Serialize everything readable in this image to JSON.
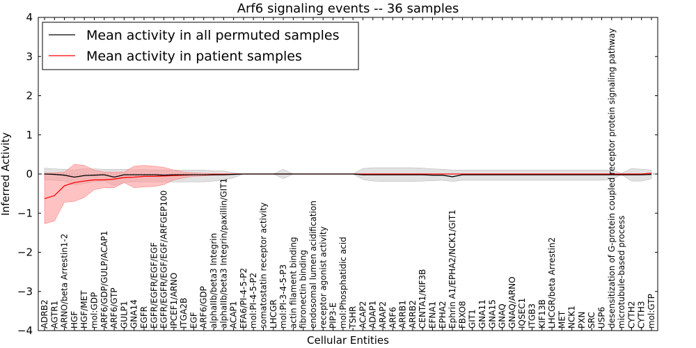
{
  "chart_data": {
    "type": "line",
    "title": "Arf6 signaling events -- 36 samples",
    "xlabel": "Cellular Entities",
    "ylabel": "Inferred Activity",
    "ylim": [
      -4,
      4
    ],
    "yticks": [
      4,
      3,
      2,
      1,
      0,
      -1,
      -2,
      -3,
      -4
    ],
    "ytick_labels": [
      "4",
      "3",
      "2",
      "1",
      "0",
      "−1",
      "−2",
      "−3",
      "−4"
    ],
    "legend_position": "upper-left",
    "categories": [
      "ADRB2",
      "AGTR1",
      "ARNO/beta Arrestin1-2",
      "HGF",
      "HGF/MET",
      "mol:GDP",
      "ARF6/GDP/GULP/ACAP1",
      "ARF6/GTP",
      "GULP1",
      "GNA14",
      "EGFR",
      "EGFR/EGFR/EGF/EGF",
      "EGFR/EGFR/EGF/EGF/ARFGEP100",
      "IPCEF1/ARNO",
      "ITGA2B",
      "EGF",
      "ARF6/GDP",
      "alphaIIb/beta3 Integrin",
      "alphaIIb/beta3 Integrin/paxillin/GIT1",
      "ACAP1",
      "EFA6/PI-4-5-P2",
      "mol:PI-4-5-P2",
      "somatostatin receptor activity",
      "LHCGR",
      "mol:PI-3-4-5-P3",
      "actin filament binding",
      "fibronectin binding",
      "endosomal lumen acidification",
      "receptor agonist activity",
      "PIP3-E",
      "mol:Phosphatidic acid",
      "TSHR",
      "ACAP2",
      "ADAP1",
      "ARAP2",
      "ARF6",
      "ARRB1",
      "ARRB2",
      "CENTA1/KIF3B",
      "EFNA1",
      "EPHA2",
      "Ephrin A1/EPHA2/NCK1/GIT1",
      "FBXO8",
      "GIT1",
      "GNA11",
      "GNA15",
      "GNAQ",
      "GNAQ/ARNO",
      "IQSEC1",
      "ITGB3",
      "KIF13B",
      "LHCGR/beta Arrestin2",
      "MET",
      "NCK1",
      "PXN",
      "SRC",
      "USP6",
      "desensitization of G-protein coupled receptor protein signaling pathway",
      "microtubule-based process",
      "CYTH2",
      "CYTH3",
      "mol:GTP"
    ],
    "series": [
      {
        "name": "Mean activity in all permuted samples",
        "color": "#000000",
        "values": [
          0,
          -0.01,
          -0.03,
          -0.08,
          -0.04,
          -0.03,
          -0.02,
          -0.08,
          -0.02,
          -0.02,
          -0.02,
          -0.02,
          -0.03,
          -0.02,
          -0.02,
          -0.02,
          -0.02,
          -0.02,
          -0.02,
          -0.01,
          0,
          0,
          0,
          0,
          0,
          0,
          0,
          0,
          0,
          0,
          0,
          0,
          -0.02,
          -0.02,
          -0.02,
          -0.02,
          -0.02,
          -0.02,
          -0.02,
          -0.03,
          -0.03,
          -0.07,
          -0.02,
          -0.02,
          -0.02,
          -0.02,
          -0.02,
          -0.02,
          -0.02,
          -0.02,
          -0.02,
          -0.02,
          -0.02,
          -0.02,
          -0.02,
          -0.02,
          -0.02,
          -0.02,
          -0.02,
          -0.02,
          -0.02,
          -0.01
        ],
        "band_upper": [
          0.15,
          0.13,
          0.12,
          0.1,
          0.14,
          0.13,
          0.12,
          0.12,
          0.12,
          0.11,
          0.11,
          0.1,
          0.1,
          0.1,
          0.1,
          0.1,
          0.1,
          0.08,
          0.08,
          0.03,
          0,
          0,
          0,
          0,
          0.12,
          0,
          0,
          0,
          0,
          0,
          0,
          0,
          0.14,
          0.16,
          0.16,
          0.16,
          0.16,
          0.16,
          0.15,
          0.13,
          0.12,
          0.1,
          0.1,
          0.1,
          0.1,
          0.1,
          0.1,
          0.1,
          0.1,
          0.1,
          0.1,
          0.1,
          0.1,
          0.1,
          0.1,
          0.1,
          0.1,
          0.1,
          0.02,
          0.14,
          0.12,
          0.1
        ],
        "band_lower": [
          -0.15,
          -0.16,
          -0.18,
          -0.28,
          -0.24,
          -0.2,
          -0.18,
          -0.3,
          -0.22,
          -0.2,
          -0.2,
          -0.2,
          -0.2,
          -0.2,
          -0.2,
          -0.2,
          -0.2,
          -0.18,
          -0.15,
          -0.1,
          0,
          0,
          0,
          0,
          -0.12,
          0,
          0,
          0,
          0,
          0,
          0,
          0,
          -0.14,
          -0.18,
          -0.19,
          -0.19,
          -0.19,
          -0.19,
          -0.18,
          -0.17,
          -0.16,
          -0.19,
          -0.16,
          -0.16,
          -0.16,
          -0.16,
          -0.16,
          -0.16,
          -0.16,
          -0.16,
          -0.16,
          -0.16,
          -0.16,
          -0.16,
          -0.16,
          -0.16,
          -0.16,
          -0.14,
          -0.02,
          -0.18,
          -0.18,
          -0.12
        ]
      },
      {
        "name": "Mean activity in patient samples",
        "color": "#ff0000",
        "values": [
          -0.63,
          -0.55,
          -0.3,
          -0.22,
          -0.18,
          -0.15,
          -0.15,
          -0.13,
          -0.09,
          -0.08,
          -0.06,
          -0.06,
          -0.05,
          -0.04,
          -0.03,
          -0.02,
          -0.02,
          -0.01,
          -0.01,
          0,
          0,
          0,
          0,
          0,
          0,
          0,
          0,
          0,
          0,
          0,
          0,
          0,
          0,
          0,
          0,
          0,
          0,
          0,
          0,
          0,
          0,
          0,
          0,
          0,
          0,
          0,
          0,
          0,
          0,
          0,
          0,
          0,
          0,
          0,
          0,
          0,
          0,
          0,
          0,
          0,
          0,
          0.02
        ],
        "band_upper": [
          0.02,
          0.03,
          0.05,
          0.25,
          0.22,
          0.1,
          0.05,
          0.05,
          0.05,
          0.2,
          0.22,
          0.2,
          0.17,
          0.1,
          0.05,
          0.03,
          0.02,
          0.01,
          0.01,
          0,
          0,
          0,
          0,
          0,
          0,
          0,
          0,
          0,
          0,
          0,
          0,
          0,
          0,
          0,
          0,
          0,
          0,
          0,
          0,
          0,
          0,
          0,
          0,
          0,
          0,
          0,
          0,
          0,
          0,
          0,
          0,
          0,
          0,
          0,
          0,
          0,
          0,
          0,
          0,
          0,
          0,
          0.03
        ],
        "band_lower": [
          -1.27,
          -1.2,
          -0.72,
          -0.7,
          -0.6,
          -0.4,
          -0.35,
          -0.35,
          -0.22,
          -0.35,
          -0.33,
          -0.32,
          -0.27,
          -0.15,
          -0.1,
          -0.06,
          -0.05,
          -0.03,
          -0.02,
          0,
          0,
          0,
          0,
          0,
          0,
          0,
          0,
          0,
          0,
          0,
          0,
          0,
          0,
          0,
          0,
          0,
          0,
          0,
          0,
          0,
          0,
          0,
          0,
          0,
          0,
          0,
          0,
          0,
          0,
          0,
          0,
          0,
          0,
          0,
          0,
          0,
          0,
          0,
          0,
          0,
          0,
          0.01
        ]
      }
    ],
    "band_colors": {
      "permuted": "#c8c8c8",
      "patient": "#ff9a9a"
    },
    "axis_color": "#000000"
  }
}
